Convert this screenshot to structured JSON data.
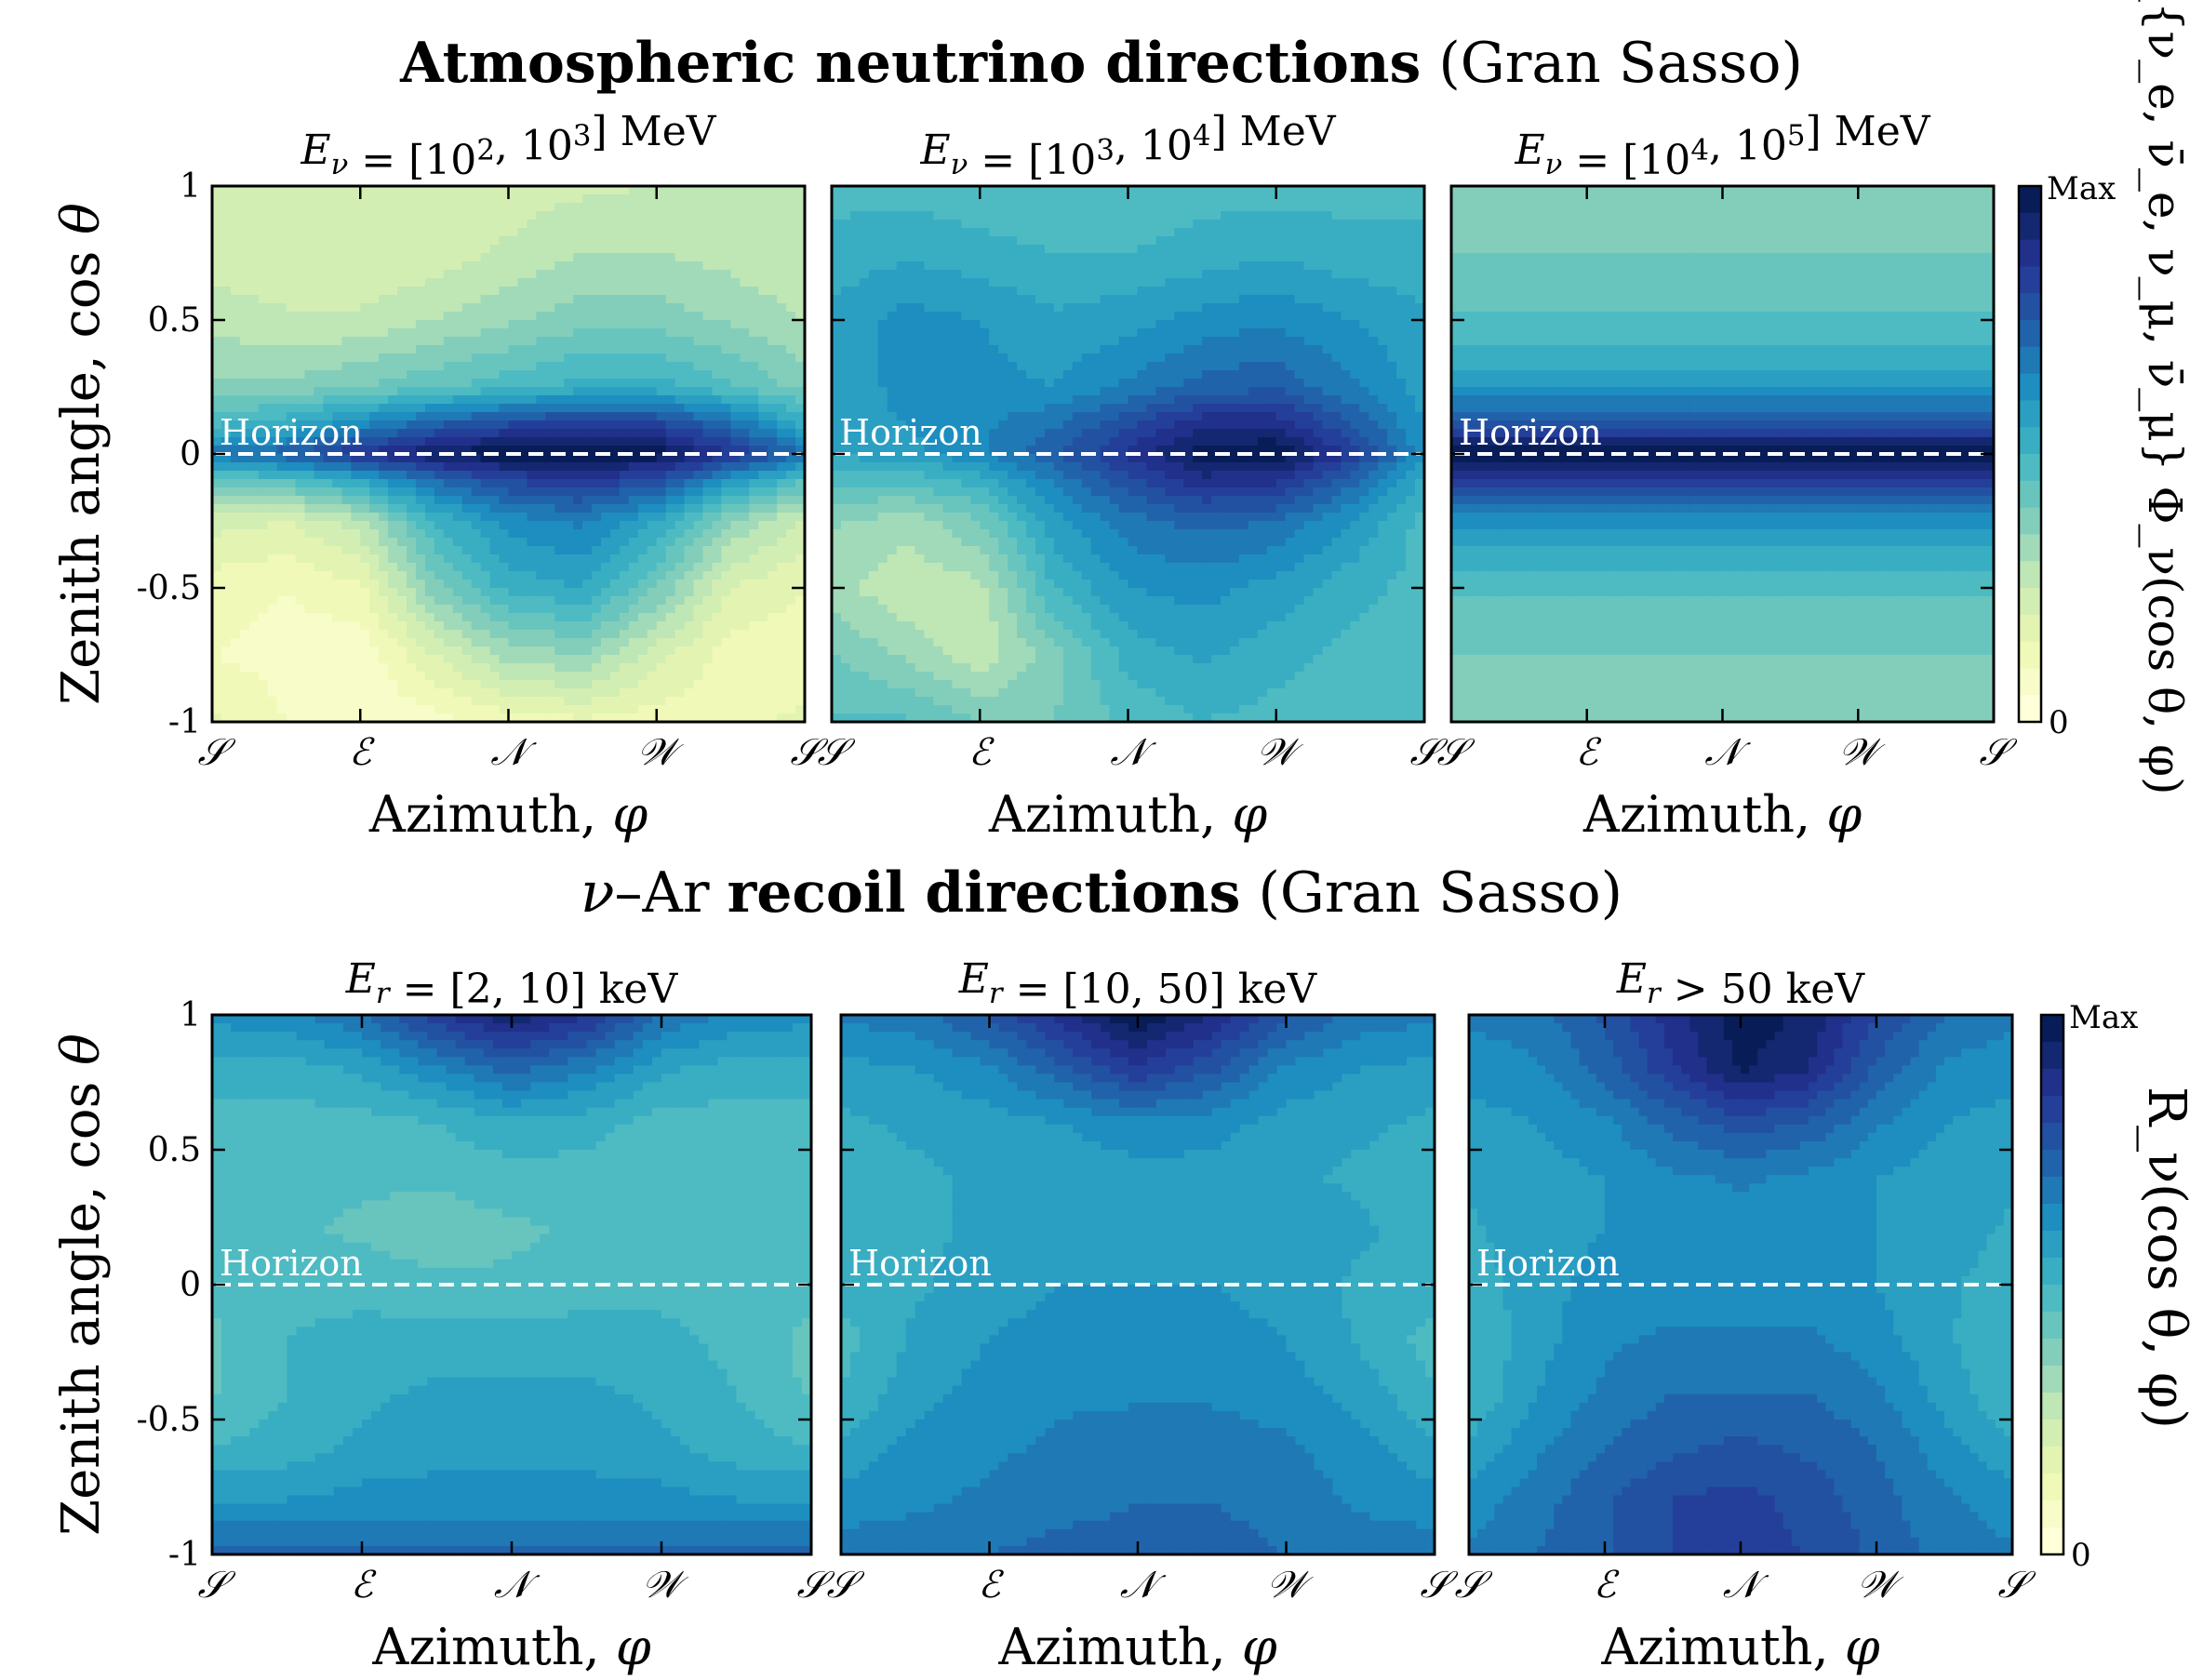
{
  "figure": {
    "top_title_bold": "Atmospheric neutrino directions",
    "top_title_plain": " (Gran Sasso)",
    "bottom_title_greek": "ν",
    "bottom_title_prefix": "–Ar ",
    "bottom_title_bold": "recoil directions",
    "bottom_title_plain": " (Gran Sasso)"
  },
  "palette": [
    "#ffffd9",
    "#edf8b1",
    "#c7e9b4",
    "#7fcdbb",
    "#41b6c4",
    "#1d91c0",
    "#225ea8",
    "#253494",
    "#081d58"
  ],
  "chart_data": [
    {
      "type": "heatmap",
      "title": "E_ν = [10^2, 10^3] MeV",
      "xlabel": "Azimuth, φ",
      "ylabel": "Zenith angle, cos θ",
      "x_ticks": [
        "𝒮",
        "ℰ",
        "𝒩",
        "𝒲",
        "𝒮"
      ],
      "y_ticks": [
        "1",
        "0.5",
        "0",
        "-0.5",
        "-1"
      ],
      "ylim": [
        -1,
        1
      ],
      "annotation": "Horizon",
      "colorbar": {
        "max": "Max",
        "min": "0",
        "label": "Σ_{ν_e, ν̄_e, ν_μ, ν̄_μ} Φ_ν(cos θ, φ)"
      },
      "x": [
        0,
        0.125,
        0.25,
        0.375,
        0.5,
        0.625,
        0.75,
        0.875,
        1
      ],
      "y": [
        1,
        0.75,
        0.5,
        0.25,
        0.1,
        0,
        -0.1,
        -0.25,
        -0.5,
        -0.75,
        -1
      ],
      "z": [
        [
          0.25,
          0.22,
          0.2,
          0.2,
          0.22,
          0.24,
          0.25,
          0.25,
          0.25
        ],
        [
          0.22,
          0.2,
          0.2,
          0.22,
          0.26,
          0.3,
          0.3,
          0.28,
          0.25
        ],
        [
          0.28,
          0.26,
          0.26,
          0.3,
          0.34,
          0.38,
          0.38,
          0.34,
          0.3
        ],
        [
          0.36,
          0.36,
          0.4,
          0.44,
          0.48,
          0.52,
          0.52,
          0.46,
          0.38
        ],
        [
          0.5,
          0.55,
          0.66,
          0.76,
          0.82,
          0.86,
          0.84,
          0.72,
          0.55
        ],
        [
          0.68,
          0.74,
          0.86,
          0.96,
          1.0,
          1.0,
          0.98,
          0.86,
          0.7
        ],
        [
          0.42,
          0.45,
          0.55,
          0.7,
          0.8,
          0.84,
          0.78,
          0.6,
          0.45
        ],
        [
          0.22,
          0.2,
          0.28,
          0.5,
          0.62,
          0.66,
          0.55,
          0.35,
          0.24
        ],
        [
          0.12,
          0.1,
          0.14,
          0.38,
          0.52,
          0.55,
          0.4,
          0.2,
          0.15
        ],
        [
          0.1,
          0.08,
          0.06,
          0.2,
          0.32,
          0.35,
          0.22,
          0.12,
          0.12
        ],
        [
          0.16,
          0.1,
          0.06,
          0.08,
          0.12,
          0.14,
          0.12,
          0.14,
          0.16
        ]
      ]
    },
    {
      "type": "heatmap",
      "title": "E_ν = [10^3, 10^4] MeV",
      "xlabel": "Azimuth, φ",
      "x_ticks": [
        "𝒮",
        "ℰ",
        "𝒩",
        "𝒲",
        "𝒮"
      ],
      "ylim": [
        -1,
        1
      ],
      "annotation": "Horizon",
      "x": [
        0,
        0.125,
        0.25,
        0.375,
        0.5,
        0.625,
        0.75,
        0.875,
        1
      ],
      "y": [
        1,
        0.75,
        0.5,
        0.25,
        0.1,
        0,
        -0.1,
        -0.25,
        -0.5,
        -0.75,
        -1
      ],
      "z": [
        [
          0.48,
          0.48,
          0.46,
          0.46,
          0.46,
          0.48,
          0.48,
          0.48,
          0.48
        ],
        [
          0.52,
          0.54,
          0.52,
          0.5,
          0.5,
          0.52,
          0.54,
          0.52,
          0.52
        ],
        [
          0.56,
          0.62,
          0.6,
          0.56,
          0.58,
          0.62,
          0.64,
          0.6,
          0.56
        ],
        [
          0.56,
          0.62,
          0.62,
          0.6,
          0.66,
          0.72,
          0.74,
          0.66,
          0.58
        ],
        [
          0.56,
          0.6,
          0.64,
          0.7,
          0.8,
          0.9,
          0.9,
          0.76,
          0.6
        ],
        [
          0.56,
          0.58,
          0.64,
          0.74,
          0.86,
          0.98,
          1.0,
          0.84,
          0.62
        ],
        [
          0.46,
          0.46,
          0.52,
          0.66,
          0.78,
          0.88,
          0.86,
          0.72,
          0.54
        ],
        [
          0.36,
          0.32,
          0.4,
          0.58,
          0.68,
          0.72,
          0.7,
          0.6,
          0.48
        ],
        [
          0.32,
          0.26,
          0.28,
          0.5,
          0.6,
          0.62,
          0.58,
          0.52,
          0.48
        ],
        [
          0.4,
          0.34,
          0.26,
          0.38,
          0.52,
          0.56,
          0.52,
          0.48,
          0.48
        ],
        [
          0.46,
          0.46,
          0.4,
          0.4,
          0.46,
          0.5,
          0.48,
          0.46,
          0.46
        ]
      ]
    },
    {
      "type": "heatmap",
      "title": "E_ν = [10^4, 10^5] MeV",
      "xlabel": "Azimuth, φ",
      "x_ticks": [
        "𝒮",
        "ℰ",
        "𝒩",
        "𝒲",
        "𝒮"
      ],
      "ylim": [
        -1,
        1
      ],
      "annotation": "Horizon",
      "x": [
        0,
        0.5,
        1
      ],
      "y": [
        1,
        0.75,
        0.5,
        0.3,
        0.15,
        0.05,
        0,
        -0.05,
        -0.15,
        -0.3,
        -0.5,
        -0.75,
        -1
      ],
      "z": [
        [
          0.36,
          0.36,
          0.36
        ],
        [
          0.4,
          0.4,
          0.4
        ],
        [
          0.46,
          0.46,
          0.46
        ],
        [
          0.56,
          0.56,
          0.56
        ],
        [
          0.72,
          0.72,
          0.72
        ],
        [
          0.9,
          0.9,
          0.9
        ],
        [
          1.0,
          1.0,
          1.0
        ],
        [
          0.92,
          0.92,
          0.92
        ],
        [
          0.74,
          0.74,
          0.74
        ],
        [
          0.58,
          0.58,
          0.58
        ],
        [
          0.46,
          0.46,
          0.46
        ],
        [
          0.4,
          0.4,
          0.4
        ],
        [
          0.36,
          0.36,
          0.36
        ]
      ]
    },
    {
      "type": "heatmap",
      "title": "E_r = [2, 10] keV",
      "xlabel": "Azimuth, φ",
      "ylabel": "Zenith angle, cos θ",
      "x_ticks": [
        "𝒮",
        "ℰ",
        "𝒩",
        "𝒲",
        "𝒮"
      ],
      "y_ticks": [
        "1",
        "0.5",
        "0",
        "-0.5",
        "-1"
      ],
      "ylim": [
        -1,
        1
      ],
      "annotation": "Horizon",
      "colorbar": {
        "max": "Max",
        "min": "0",
        "label": "R_ν(cos θ, φ)"
      },
      "x": [
        0,
        0.125,
        0.25,
        0.375,
        0.5,
        0.625,
        0.75,
        0.875,
        1
      ],
      "y": [
        1,
        0.8,
        0.6,
        0.4,
        0.2,
        0,
        -0.2,
        -0.4,
        -0.6,
        -0.8,
        -1
      ],
      "z": [
        [
          0.62,
          0.64,
          0.7,
          0.84,
          0.94,
          0.86,
          0.7,
          0.64,
          0.62
        ],
        [
          0.52,
          0.52,
          0.56,
          0.64,
          0.72,
          0.66,
          0.56,
          0.52,
          0.52
        ],
        [
          0.48,
          0.48,
          0.48,
          0.5,
          0.54,
          0.52,
          0.48,
          0.48,
          0.48
        ],
        [
          0.48,
          0.46,
          0.46,
          0.46,
          0.48,
          0.48,
          0.46,
          0.46,
          0.48
        ],
        [
          0.46,
          0.46,
          0.44,
          0.42,
          0.44,
          0.46,
          0.46,
          0.46,
          0.46
        ],
        [
          0.46,
          0.48,
          0.48,
          0.46,
          0.46,
          0.48,
          0.48,
          0.46,
          0.46
        ],
        [
          0.44,
          0.5,
          0.52,
          0.52,
          0.52,
          0.52,
          0.52,
          0.48,
          0.44
        ],
        [
          0.44,
          0.5,
          0.54,
          0.56,
          0.56,
          0.56,
          0.54,
          0.5,
          0.44
        ],
        [
          0.5,
          0.52,
          0.56,
          0.58,
          0.58,
          0.58,
          0.56,
          0.52,
          0.5
        ],
        [
          0.6,
          0.6,
          0.62,
          0.62,
          0.62,
          0.62,
          0.62,
          0.6,
          0.6
        ],
        [
          0.72,
          0.72,
          0.72,
          0.72,
          0.72,
          0.72,
          0.72,
          0.72,
          0.72
        ]
      ]
    },
    {
      "type": "heatmap",
      "title": "E_r = [10, 50] keV",
      "xlabel": "Azimuth, φ",
      "x_ticks": [
        "𝒮",
        "ℰ",
        "𝒩",
        "𝒲",
        "𝒮"
      ],
      "ylim": [
        -1,
        1
      ],
      "annotation": "Horizon",
      "x": [
        0,
        0.125,
        0.25,
        0.375,
        0.5,
        0.625,
        0.75,
        0.875,
        1
      ],
      "y": [
        1,
        0.8,
        0.6,
        0.4,
        0.2,
        0,
        -0.2,
        -0.4,
        -0.6,
        -0.8,
        -1
      ],
      "z": [
        [
          0.66,
          0.68,
          0.76,
          0.88,
          1.0,
          0.9,
          0.76,
          0.68,
          0.66
        ],
        [
          0.58,
          0.6,
          0.64,
          0.74,
          0.84,
          0.76,
          0.64,
          0.6,
          0.58
        ],
        [
          0.54,
          0.56,
          0.58,
          0.6,
          0.64,
          0.62,
          0.58,
          0.56,
          0.54
        ],
        [
          0.52,
          0.54,
          0.56,
          0.56,
          0.58,
          0.58,
          0.56,
          0.54,
          0.52
        ],
        [
          0.52,
          0.54,
          0.56,
          0.58,
          0.58,
          0.58,
          0.58,
          0.56,
          0.52
        ],
        [
          0.52,
          0.54,
          0.58,
          0.6,
          0.6,
          0.6,
          0.58,
          0.54,
          0.52
        ],
        [
          0.48,
          0.56,
          0.6,
          0.62,
          0.62,
          0.62,
          0.6,
          0.54,
          0.48
        ],
        [
          0.5,
          0.58,
          0.62,
          0.64,
          0.64,
          0.64,
          0.62,
          0.58,
          0.5
        ],
        [
          0.56,
          0.62,
          0.64,
          0.66,
          0.68,
          0.68,
          0.66,
          0.62,
          0.56
        ],
        [
          0.62,
          0.64,
          0.66,
          0.68,
          0.7,
          0.7,
          0.68,
          0.64,
          0.62
        ],
        [
          0.68,
          0.68,
          0.7,
          0.72,
          0.72,
          0.72,
          0.7,
          0.68,
          0.68
        ]
      ]
    },
    {
      "type": "heatmap",
      "title": "E_r > 50 keV",
      "xlabel": "Azimuth, φ",
      "x_ticks": [
        "𝒮",
        "ℰ",
        "𝒩",
        "𝒲",
        "𝒮"
      ],
      "ylim": [
        -1,
        1
      ],
      "annotation": "Horizon",
      "colorbar": {
        "max": "Max",
        "min": "0"
      },
      "x": [
        0,
        0.125,
        0.25,
        0.375,
        0.5,
        0.625,
        0.75,
        0.875,
        1
      ],
      "y": [
        1,
        0.8,
        0.6,
        0.4,
        0.2,
        0,
        -0.2,
        -0.4,
        -0.6,
        -0.8,
        -1
      ],
      "z": [
        [
          0.66,
          0.68,
          0.76,
          0.88,
          0.98,
          0.94,
          0.8,
          0.7,
          0.66
        ],
        [
          0.62,
          0.64,
          0.72,
          0.84,
          0.96,
          0.9,
          0.74,
          0.64,
          0.62
        ],
        [
          0.58,
          0.6,
          0.64,
          0.72,
          0.78,
          0.74,
          0.66,
          0.6,
          0.58
        ],
        [
          0.56,
          0.58,
          0.6,
          0.64,
          0.66,
          0.64,
          0.6,
          0.58,
          0.56
        ],
        [
          0.54,
          0.58,
          0.6,
          0.62,
          0.62,
          0.62,
          0.6,
          0.58,
          0.54
        ],
        [
          0.52,
          0.58,
          0.62,
          0.62,
          0.62,
          0.62,
          0.6,
          0.56,
          0.52
        ],
        [
          0.5,
          0.58,
          0.64,
          0.66,
          0.66,
          0.66,
          0.62,
          0.56,
          0.5
        ],
        [
          0.5,
          0.6,
          0.66,
          0.7,
          0.7,
          0.7,
          0.66,
          0.58,
          0.5
        ],
        [
          0.56,
          0.64,
          0.7,
          0.74,
          0.76,
          0.74,
          0.7,
          0.62,
          0.56
        ],
        [
          0.62,
          0.68,
          0.74,
          0.8,
          0.82,
          0.78,
          0.72,
          0.66,
          0.62
        ],
        [
          0.66,
          0.7,
          0.74,
          0.8,
          0.82,
          0.8,
          0.74,
          0.68,
          0.66
        ]
      ]
    }
  ]
}
